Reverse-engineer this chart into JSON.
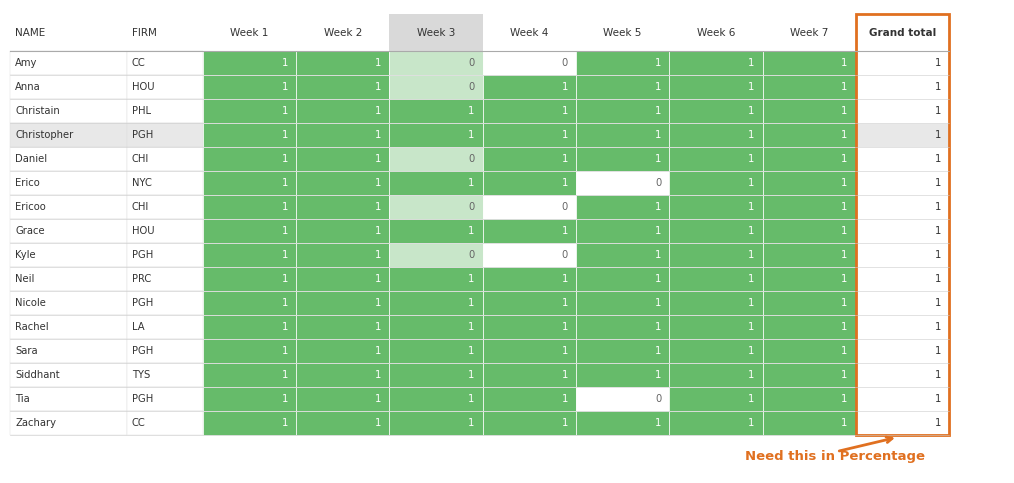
{
  "columns": [
    "NAME",
    "FIRM",
    "Week 1",
    "Week 2",
    "Week 3",
    "Week 4",
    "Week 5",
    "Week 6",
    "Week 7",
    "Grand total"
  ],
  "rows": [
    [
      "Amy",
      "CC",
      1,
      1,
      0,
      0,
      1,
      1,
      1,
      1
    ],
    [
      "Anna",
      "HOU",
      1,
      1,
      0,
      1,
      1,
      1,
      1,
      1
    ],
    [
      "Christain",
      "PHL",
      1,
      1,
      1,
      1,
      1,
      1,
      1,
      1
    ],
    [
      "Christopher",
      "PGH",
      1,
      1,
      1,
      1,
      1,
      1,
      1,
      1
    ],
    [
      "Daniel",
      "CHI",
      1,
      1,
      0,
      1,
      1,
      1,
      1,
      1
    ],
    [
      "Erico",
      "NYC",
      1,
      1,
      1,
      1,
      0,
      1,
      1,
      1
    ],
    [
      "Ericoo",
      "CHI",
      1,
      1,
      0,
      0,
      1,
      1,
      1,
      1
    ],
    [
      "Grace",
      "HOU",
      1,
      1,
      1,
      1,
      1,
      1,
      1,
      1
    ],
    [
      "Kyle",
      "PGH",
      1,
      1,
      0,
      0,
      1,
      1,
      1,
      1
    ],
    [
      "Neil",
      "PRC",
      1,
      1,
      1,
      1,
      1,
      1,
      1,
      1
    ],
    [
      "Nicole",
      "PGH",
      1,
      1,
      1,
      1,
      1,
      1,
      1,
      1
    ],
    [
      "Rachel",
      "LA",
      1,
      1,
      1,
      1,
      1,
      1,
      1,
      1
    ],
    [
      "Sara",
      "PGH",
      1,
      1,
      1,
      1,
      1,
      1,
      1,
      1
    ],
    [
      "Siddhant",
      "TYS",
      1,
      1,
      1,
      1,
      1,
      1,
      1,
      1
    ],
    [
      "Tia",
      "PGH",
      1,
      1,
      1,
      1,
      0,
      1,
      1,
      1
    ],
    [
      "Zachary",
      "CC",
      1,
      1,
      1,
      1,
      1,
      1,
      1,
      1
    ]
  ],
  "week3_header_bg": "#d9d9d9",
  "color_1": "#66bb6a",
  "color_0_week3": "#c8e6c9",
  "color_0_other": "#ffffff",
  "color_grand_total_border": "#e07020",
  "color_grand_total_text": "#333333",
  "highlight_row_color": "#e8e8e8",
  "header_text_color": "#333333",
  "annotation_text": "Need this in Percentage",
  "annotation_color": "#e07020",
  "fig_width": 10.14,
  "fig_height": 4.83
}
